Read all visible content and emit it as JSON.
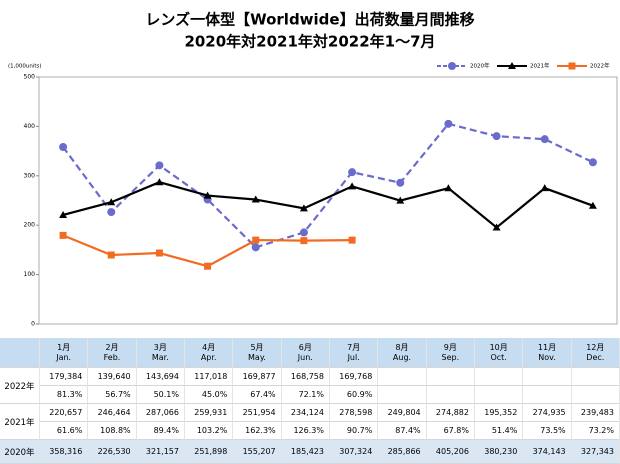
{
  "chart_data": {
    "type": "line",
    "title": "レンズ一体型【Worldwide】出荷数量月間推移",
    "subtitle": "2020年対2021年対2022年1～7月",
    "y_label": "(1,000units)",
    "ylim": [
      0,
      500
    ],
    "yticks": [
      0,
      100,
      200,
      300,
      400,
      500
    ],
    "legend": "top-right",
    "series": [
      {
        "name": "2020年",
        "color": "#6b6bcc",
        "dash": true,
        "marker": "circle",
        "values": [
          358.316,
          226.53,
          321.157,
          251.898,
          155.207,
          185.423,
          307.324,
          285.866,
          405.206,
          380.23,
          374.143,
          327.343
        ]
      },
      {
        "name": "2021年",
        "color": "#000000",
        "dash": false,
        "marker": "triangle",
        "values": [
          220.657,
          246.464,
          287.066,
          259.931,
          251.954,
          234.124,
          278.598,
          249.804,
          274.882,
          195.352,
          274.935,
          239.483
        ]
      },
      {
        "name": "2022年",
        "color": "#f26b21",
        "dash": false,
        "marker": "square",
        "values": [
          179.384,
          139.64,
          143.694,
          117.018,
          169.877,
          168.758,
          169.768,
          null,
          null,
          null,
          null,
          null
        ]
      }
    ]
  },
  "table": {
    "header": [
      {
        "ja": "1月",
        "en": "Jan."
      },
      {
        "ja": "2月",
        "en": "Feb."
      },
      {
        "ja": "3月",
        "en": "Mar."
      },
      {
        "ja": "4月",
        "en": "Apr."
      },
      {
        "ja": "5月",
        "en": "May."
      },
      {
        "ja": "6月",
        "en": "Jun."
      },
      {
        "ja": "7月",
        "en": "Jul."
      },
      {
        "ja": "8月",
        "en": "Aug."
      },
      {
        "ja": "9月",
        "en": "Sep."
      },
      {
        "ja": "10月",
        "en": "Oct."
      },
      {
        "ja": "11月",
        "en": "Nov."
      },
      {
        "ja": "12月",
        "en": "Dec."
      }
    ],
    "rows": [
      {
        "label": "2022年",
        "values": [
          "179,384",
          "139,640",
          "143,694",
          "117,018",
          "169,877",
          "168,758",
          "169,768"
        ],
        "ratios": [
          "81.3%",
          "56.7%",
          "50.1%",
          "45.0%",
          "67.4%",
          "72.1%",
          "60.9%"
        ]
      },
      {
        "label": "2021年",
        "values": [
          "220,657",
          "246,464",
          "287,066",
          "259,931",
          "251,954",
          "234,124",
          "278,598",
          "249,804",
          "274,882",
          "195,352",
          "274,935",
          "239,483"
        ],
        "ratios": [
          "61.6%",
          "108.8%",
          "89.4%",
          "103.2%",
          "162.3%",
          "126.3%",
          "90.7%",
          "87.4%",
          "67.8%",
          "51.4%",
          "73.5%",
          "73.2%"
        ]
      },
      {
        "label": "2020年",
        "values": [
          "358,316",
          "226,530",
          "321,157",
          "251,898",
          "155,207",
          "185,423",
          "307,324",
          "285,866",
          "405,206",
          "380,230",
          "374,143",
          "327,343"
        ]
      }
    ]
  }
}
